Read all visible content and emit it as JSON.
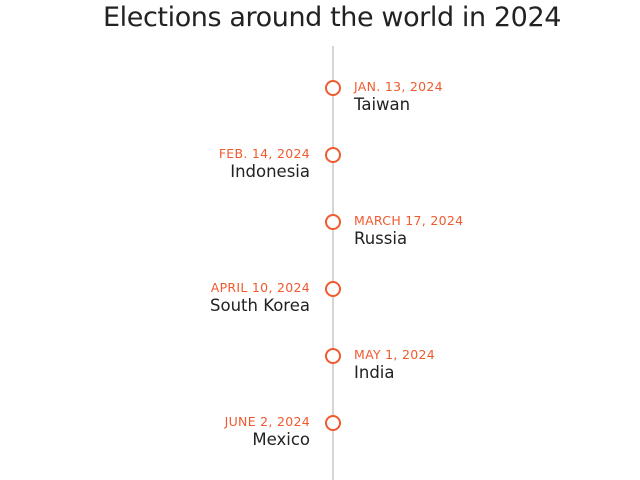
{
  "title": "Elections around the world in 2024",
  "colors": {
    "accent": "#f05a2e",
    "axis_line": "#d5d5d5",
    "text": "#222222"
  },
  "events": [
    {
      "date": "JAN. 13, 2024",
      "country": "Taiwan",
      "side": "right"
    },
    {
      "date": "FEB. 14, 2024",
      "country": "Indonesia",
      "side": "left"
    },
    {
      "date": "MARCH 17, 2024",
      "country": "Russia",
      "side": "right"
    },
    {
      "date": "APRIL 10, 2024",
      "country": "South Korea",
      "side": "left"
    },
    {
      "date": "MAY 1, 2024",
      "country": "India",
      "side": "right"
    },
    {
      "date": "JUNE 2, 2024",
      "country": "Mexico",
      "side": "left"
    }
  ]
}
